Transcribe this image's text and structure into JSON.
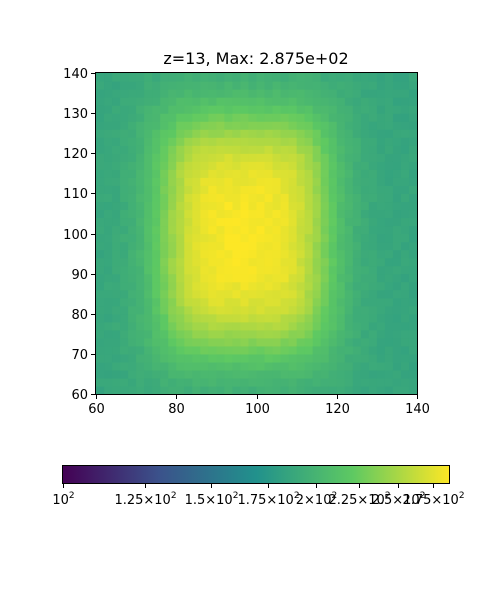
{
  "chart_data": {
    "type": "heatmap",
    "title": "z=13, Max: 2.875e+02",
    "xlim": [
      60,
      140
    ],
    "ylim": [
      60,
      140
    ],
    "x_ticks": [
      "60",
      "80",
      "100",
      "120",
      "140"
    ],
    "y_ticks": [
      "60",
      "70",
      "80",
      "90",
      "100",
      "110",
      "120",
      "130",
      "140"
    ],
    "colormap": "viridis",
    "colorbar": {
      "orientation": "horizontal",
      "placement": "bottom",
      "range": [
        100,
        287.5
      ],
      "tick_values": [
        100,
        125,
        150,
        175,
        200,
        225,
        250,
        275
      ],
      "tick_labels": [
        "10^2",
        "1.25×10^2",
        "1.5×10^2",
        "1.75×10^2",
        "2×10^2",
        "2.25×10^2",
        "2.5×10^2",
        "2.75×10^2"
      ]
    },
    "field": {
      "description": "rounded-rectangle plateau of high intensity centered near (97,100) over a background level",
      "background": 210,
      "peak": 287.5,
      "center": [
        97,
        100
      ],
      "half_width": [
        20,
        28
      ]
    }
  }
}
